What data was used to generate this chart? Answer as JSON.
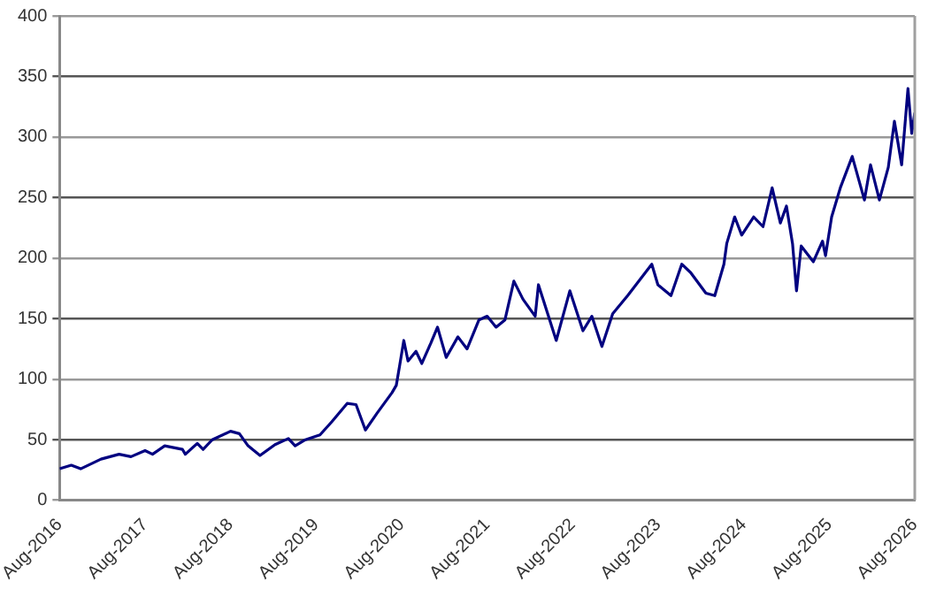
{
  "chart_data": {
    "type": "line",
    "x": [
      "2016-08-01",
      "2016-09-20",
      "2016-10-30",
      "2017-01-25",
      "2017-04-12",
      "2017-06-02",
      "2017-08-01",
      "2017-09-02",
      "2017-10-24",
      "2018-01-08",
      "2018-01-20",
      "2018-03-12",
      "2018-04-06",
      "2018-05-15",
      "2018-08-01",
      "2018-09-08",
      "2018-10-15",
      "2018-12-05",
      "2019-02-07",
      "2019-04-05",
      "2019-05-04",
      "2019-06-17",
      "2019-08-18",
      "2019-10-08",
      "2019-12-12",
      "2020-01-19",
      "2020-02-28",
      "2020-04-18",
      "2020-06-21",
      "2020-07-09",
      "2020-07-23",
      "2020-08-10",
      "2020-08-28",
      "2020-10-01",
      "2020-10-26",
      "2020-12-04",
      "2021-01-01",
      "2021-02-07",
      "2021-03-29",
      "2021-05-07",
      "2021-06-27",
      "2021-08-01",
      "2021-09-08",
      "2021-10-16",
      "2021-11-23",
      "2022-01-01",
      "2022-02-22",
      "2022-03-08",
      "2022-05-23",
      "2022-07-20",
      "2022-09-14",
      "2022-10-22",
      "2022-12-04",
      "2023-01-19",
      "2023-03-24",
      "2023-07-05",
      "2023-07-31",
      "2023-09-25",
      "2023-11-10",
      "2023-12-18",
      "2024-02-21",
      "2024-03-30",
      "2024-05-08",
      "2024-05-20",
      "2024-06-23",
      "2024-07-23",
      "2024-09-12",
      "2024-10-22",
      "2024-11-30",
      "2025-01-04",
      "2025-01-30",
      "2025-02-25",
      "2025-03-14",
      "2025-04-03",
      "2025-05-25",
      "2025-07-03",
      "2025-07-16",
      "2025-08-11",
      "2025-09-17",
      "2025-11-07",
      "2025-12-29",
      "2026-01-24",
      "2026-03-03",
      "2026-04-10",
      "2026-05-06",
      "2026-06-06",
      "2026-07-03",
      "2026-07-19",
      "2026-08-01"
    ],
    "series": [
      {
        "color": "#000080",
        "values": [
          26,
          29,
          26,
          34,
          38,
          36,
          41,
          38,
          45,
          42,
          38,
          47,
          42,
          50,
          57,
          55,
          45,
          37,
          46,
          51,
          45,
          50,
          54,
          65,
          80,
          79,
          58,
          72,
          89,
          95,
          111,
          132,
          115,
          123,
          113,
          130,
          143,
          118,
          135,
          125,
          149,
          152,
          143,
          149,
          181,
          166,
          152,
          178,
          132,
          173,
          140,
          152,
          127,
          154,
          169,
          195,
          178,
          169,
          195,
          188,
          171,
          169,
          195,
          212,
          234,
          219,
          234,
          226,
          258,
          229,
          243,
          212,
          173,
          210,
          197,
          214,
          202,
          234,
          258,
          284,
          248,
          277,
          248,
          275,
          313,
          277,
          340,
          303,
          320
        ]
      }
    ],
    "xlim": [
      "2016-08",
      "2026-08"
    ],
    "xticks": [
      {
        "value": "2016-08",
        "label": "Aug-2016"
      },
      {
        "value": "2017-08",
        "label": "Aug-2017"
      },
      {
        "value": "2018-08",
        "label": "Aug-2018"
      },
      {
        "value": "2019-08",
        "label": "Aug-2019"
      },
      {
        "value": "2020-08",
        "label": "Aug-2020"
      },
      {
        "value": "2021-08",
        "label": "Aug-2021"
      },
      {
        "value": "2022-08",
        "label": "Aug-2022"
      },
      {
        "value": "2023-08",
        "label": "Aug-2023"
      },
      {
        "value": "2024-08",
        "label": "Aug-2024"
      },
      {
        "value": "2025-08",
        "label": "Aug-2025"
      },
      {
        "value": "2026-08",
        "label": "Aug-2026"
      }
    ],
    "ylim": [
      0,
      400
    ],
    "yticks": [
      0,
      50,
      100,
      150,
      200,
      250,
      300,
      350,
      400
    ],
    "grid": "y",
    "legend": false,
    "marker": "none",
    "line_style": "solid"
  }
}
